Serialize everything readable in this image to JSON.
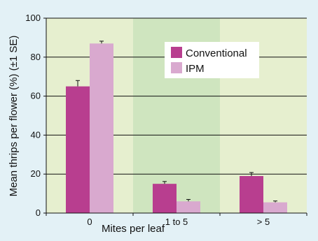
{
  "chart_data": {
    "type": "bar",
    "xlabel": "Mites per leaf",
    "ylabel": "Mean thrips per flower (%) (±1 SE)",
    "categories": [
      "0",
      "1 to 5",
      "> 5"
    ],
    "series": [
      {
        "name": "Conventional",
        "color": "#b83e8f",
        "values": [
          65,
          15,
          19
        ],
        "errors": [
          3,
          1.2,
          1.8
        ]
      },
      {
        "name": "IPM",
        "color": "#d9a9cf",
        "values": [
          87,
          6,
          5.5
        ],
        "errors": [
          1.2,
          1,
          0.7
        ]
      }
    ],
    "ylim": [
      0,
      100
    ],
    "yticks": [
      0,
      20,
      40,
      60,
      80,
      100
    ],
    "grid": true,
    "legend_position": "top-right",
    "band_colors": [
      "#e6efcf",
      "#cfe5bf"
    ]
  }
}
